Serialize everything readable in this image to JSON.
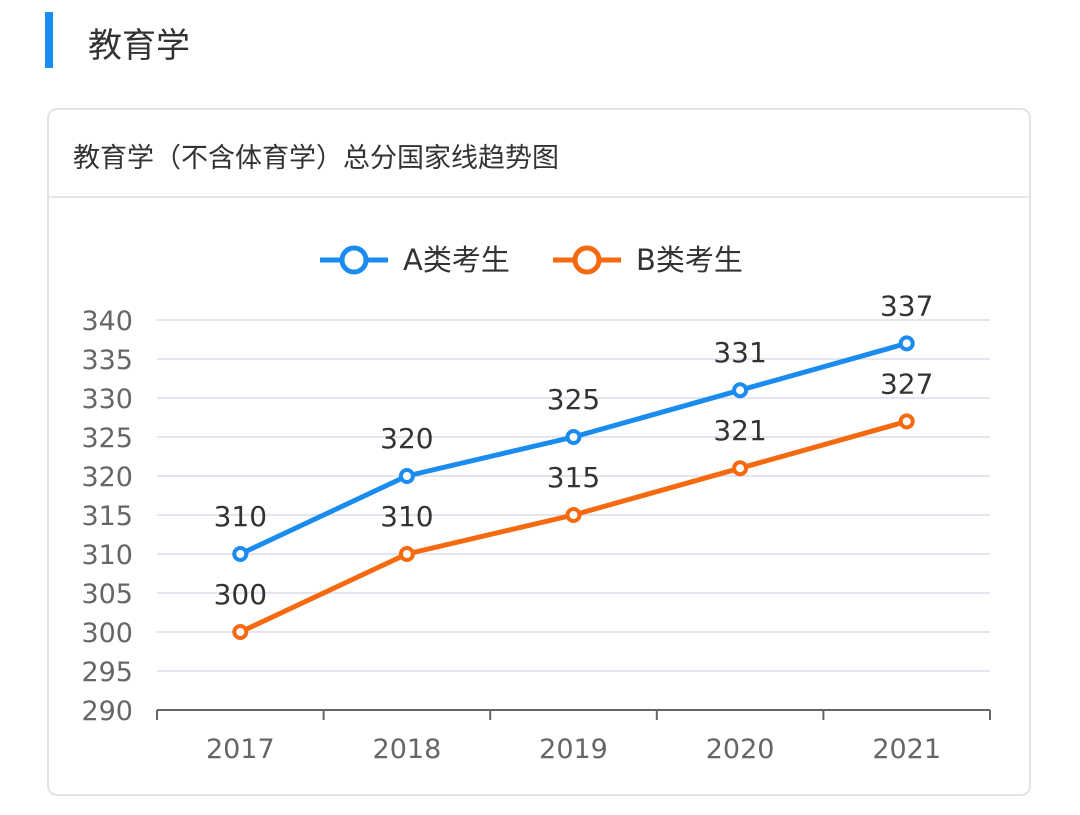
{
  "section_title": "教育学",
  "card_title": "教育学（不含体育学）总分国家线趋势图",
  "chart_data": {
    "type": "line",
    "categories": [
      "2017",
      "2018",
      "2019",
      "2020",
      "2021"
    ],
    "series": [
      {
        "name": "A类考生",
        "color": "#1a8cf0",
        "values": [
          310,
          320,
          325,
          331,
          337
        ]
      },
      {
        "name": "B类考生",
        "color": "#f56a0f",
        "values": [
          300,
          310,
          315,
          321,
          327
        ]
      }
    ],
    "ylim": [
      290,
      340
    ],
    "yticks": [
      290,
      295,
      300,
      305,
      310,
      315,
      320,
      325,
      330,
      335,
      340
    ],
    "grid": true,
    "legend": "top-center",
    "data_labels": true
  }
}
